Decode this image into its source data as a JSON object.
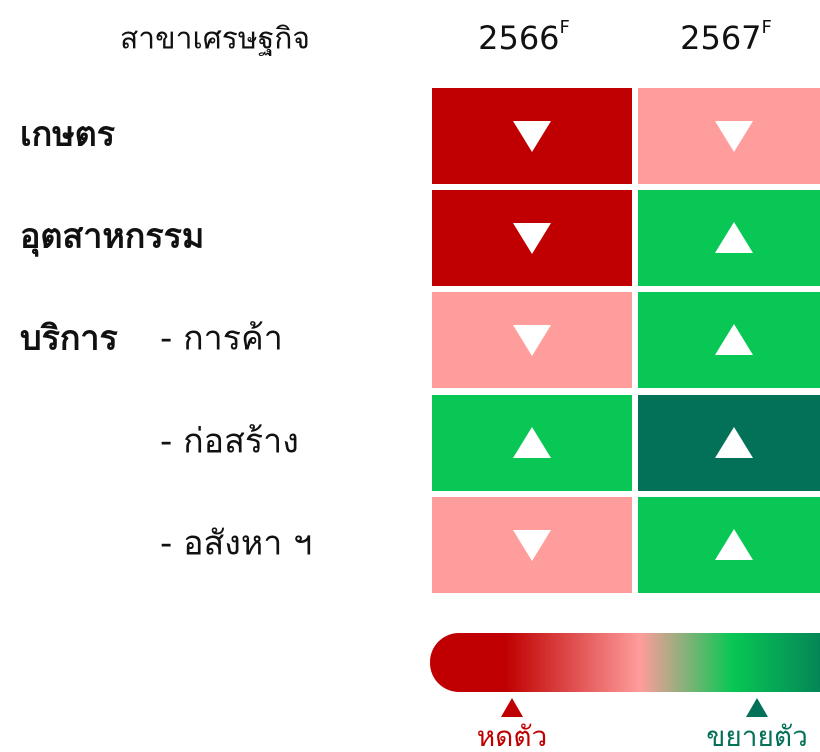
{
  "header": {
    "sector": "สาขาเศรษฐกิจ",
    "years": [
      {
        "year": "2566",
        "suffix": "F"
      },
      {
        "year": "2567",
        "suffix": "F"
      }
    ]
  },
  "rows": [
    {
      "group": "เกษตร",
      "cells": [
        {
          "direction": "down",
          "color": "#c00000"
        },
        {
          "direction": "down",
          "color": "#ff9c9c"
        }
      ]
    },
    {
      "group": "อุตสาหกรรม",
      "cells": [
        {
          "direction": "down",
          "color": "#c00000"
        },
        {
          "direction": "up",
          "color": "#08c754"
        }
      ]
    },
    {
      "group": "บริการ",
      "label": "- การค้า",
      "cells": [
        {
          "direction": "down",
          "color": "#ff9c9c"
        },
        {
          "direction": "up",
          "color": "#08c754"
        }
      ]
    },
    {
      "label": "- ก่อสร้าง",
      "cells": [
        {
          "direction": "up",
          "color": "#08c754"
        },
        {
          "direction": "up",
          "color": "#037058"
        }
      ]
    },
    {
      "label": "- อสังหา ฯ",
      "cells": [
        {
          "direction": "down",
          "color": "#ff9c9c"
        },
        {
          "direction": "up",
          "color": "#08c754"
        }
      ]
    }
  ],
  "legend": {
    "low": {
      "label": "หดตัว",
      "color": "#c00000"
    },
    "high": {
      "label": "ขยายตัว",
      "color": "#037058"
    },
    "gradient": [
      "#c00000",
      "#c00000",
      "#ff9c9c",
      "#08c754",
      "#037058"
    ]
  }
}
